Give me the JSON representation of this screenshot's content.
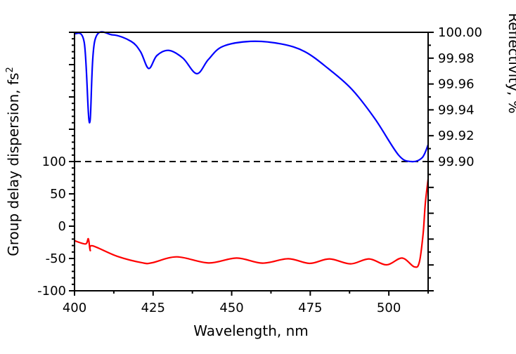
{
  "chart_data": {
    "type": "line",
    "xlabel": "Wavelength, nm",
    "ylabel_left": "Group delay dispersion, fs",
    "ylabel_left_sup": "2",
    "ylabel_right": "Reflectivity, %",
    "xlim": [
      400,
      512.5
    ],
    "ylim_left": [
      -100,
      300
    ],
    "ylim_right": [
      99.8,
      100.0
    ],
    "x_ticks": [
      "400",
      "425",
      "450",
      "475",
      "500"
    ],
    "y_left_ticks": [
      "100",
      "50",
      "0",
      "-50",
      "-100"
    ],
    "y_right_ticks": [
      "100.00",
      "99.98",
      "99.96",
      "99.94",
      "99.92",
      "99.90"
    ],
    "grid": false,
    "legend": "none",
    "reference_line": {
      "axis": "left",
      "value": 100,
      "style": "dashed"
    },
    "series": [
      {
        "axis": "right",
        "color": "#0000ff",
        "points": [
          [
            400,
            99.999
          ],
          [
            403.1,
            99.992
          ],
          [
            404.8,
            99.93
          ],
          [
            406.5,
            99.994
          ],
          [
            412.1,
            99.998
          ],
          [
            418,
            99.993
          ],
          [
            421,
            99.985
          ],
          [
            423.6,
            99.972
          ],
          [
            426.2,
            99.982
          ],
          [
            430,
            99.986
          ],
          [
            434.5,
            99.98
          ],
          [
            438.9,
            99.968
          ],
          [
            442.6,
            99.979
          ],
          [
            447.1,
            99.989
          ],
          [
            456,
            99.993
          ],
          [
            465.8,
            99.991
          ],
          [
            473.3,
            99.985
          ],
          [
            480.7,
            99.972
          ],
          [
            488.2,
            99.956
          ],
          [
            495.6,
            99.933
          ],
          [
            503.1,
            99.905
          ],
          [
            507.2,
            99.9
          ],
          [
            510.6,
            99.903
          ],
          [
            512.5,
            99.913
          ]
        ]
      },
      {
        "axis": "left",
        "color": "#ff0000",
        "points": [
          [
            400,
            -22.5
          ],
          [
            403.5,
            -27.5
          ],
          [
            404.4,
            -19.6
          ],
          [
            405,
            -37.7
          ],
          [
            405.7,
            -30.4
          ],
          [
            413.6,
            -46.7
          ],
          [
            421.8,
            -56.9
          ],
          [
            424.8,
            -56.5
          ],
          [
            432.6,
            -47.5
          ],
          [
            442.7,
            -56.9
          ],
          [
            451.6,
            -49.3
          ],
          [
            459.8,
            -57.2
          ],
          [
            468,
            -50.4
          ],
          [
            474.8,
            -57.6
          ],
          [
            481.1,
            -50.7
          ],
          [
            487.8,
            -58.3
          ],
          [
            493.7,
            -50.7
          ],
          [
            499.3,
            -59.8
          ],
          [
            504.2,
            -49.3
          ],
          [
            508.1,
            -63
          ],
          [
            509.7,
            -55.8
          ],
          [
            510.9,
            -12.3
          ],
          [
            511.6,
            34.8
          ],
          [
            512.5,
            72.8
          ]
        ]
      }
    ]
  }
}
